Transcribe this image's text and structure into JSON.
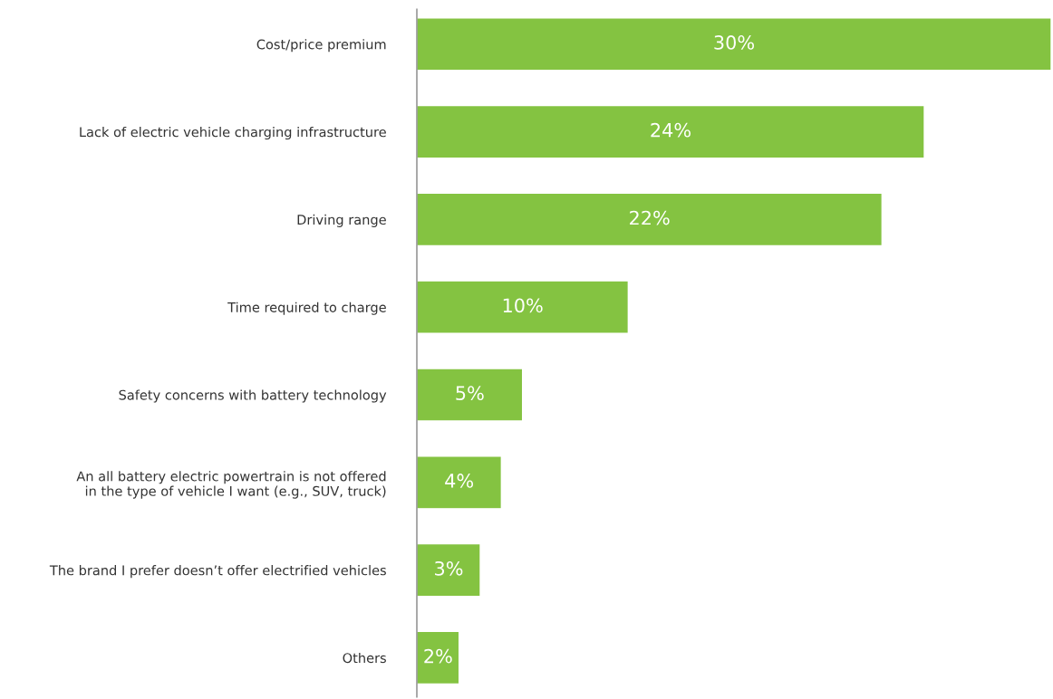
{
  "chart_data": {
    "type": "bar",
    "orientation": "horizontal",
    "categories": [
      "Cost/price premium",
      "Lack of electric vehicle charging infrastructure",
      "Driving range",
      "Time required to charge",
      "Safety concerns with battery technology",
      "An all battery electric powertrain is not offered\nin the type of vehicle I want (e.g., SUV, truck)",
      "The brand I prefer doesn’t offer electrified vehicles",
      "Others"
    ],
    "values": [
      30,
      24,
      22,
      10,
      5,
      4,
      3,
      2
    ],
    "value_labels": [
      "30%",
      "24%",
      "22%",
      "10%",
      "5%",
      "4%",
      "3%",
      "2%"
    ],
    "color": "#84c341",
    "grid": false,
    "legend": false
  }
}
